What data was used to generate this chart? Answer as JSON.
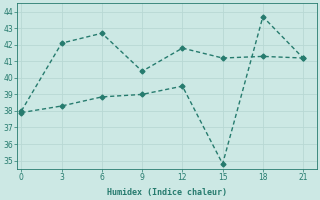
{
  "xlabel": "Humidex (Indice chaleur)",
  "x_line1": [
    0,
    3,
    6,
    9,
    12,
    15,
    18,
    21
  ],
  "y_line1": [
    38.0,
    42.1,
    42.7,
    40.4,
    41.8,
    41.2,
    41.3,
    41.2
  ],
  "x_line2": [
    0,
    3,
    6,
    9,
    12,
    15,
    18,
    21
  ],
  "y_line2": [
    37.9,
    38.3,
    38.85,
    39.0,
    39.5,
    34.8,
    43.7,
    41.2
  ],
  "line_color": "#267b6e",
  "bg_color": "#cce8e4",
  "grid_color": "#b8d8d4",
  "ylim": [
    34.5,
    44.5
  ],
  "xlim": [
    -0.3,
    22
  ],
  "yticks": [
    35,
    36,
    37,
    38,
    39,
    40,
    41,
    42,
    43,
    44
  ],
  "xticks": [
    0,
    3,
    6,
    9,
    12,
    15,
    18,
    21
  ],
  "markersize": 2.5,
  "linewidth": 1.0,
  "tick_fontsize": 5.5,
  "xlabel_fontsize": 6.0
}
